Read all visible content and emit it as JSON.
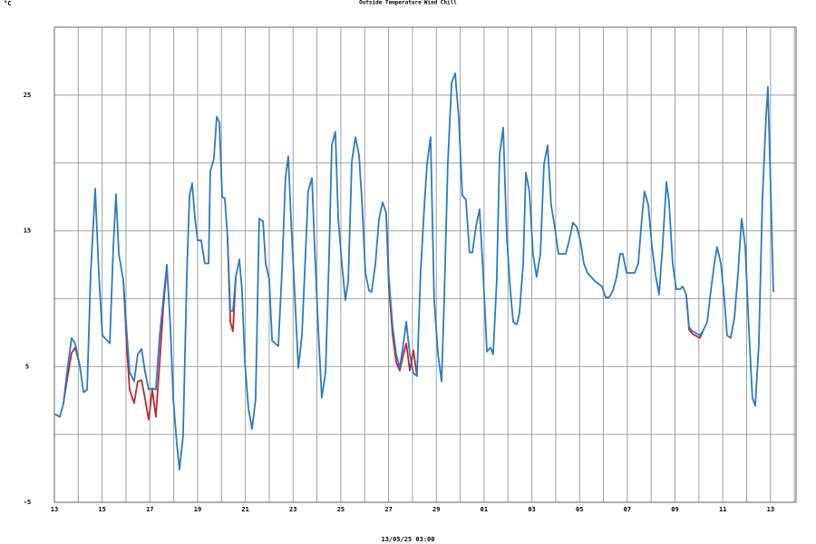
{
  "chart_data": {
    "type": "line",
    "ylabel": "°C",
    "xlabel": "13/05/25 03:00",
    "xlim": [
      0,
      31.07
    ],
    "xticks": [
      {
        "value": 0,
        "label": "13"
      },
      {
        "value": 2,
        "label": "15"
      },
      {
        "value": 4,
        "label": "17"
      },
      {
        "value": 6,
        "label": "19"
      },
      {
        "value": 8,
        "label": "21"
      },
      {
        "value": 10,
        "label": "23"
      },
      {
        "value": 12,
        "label": "25"
      },
      {
        "value": 14,
        "label": "27"
      },
      {
        "value": 16,
        "label": "29"
      },
      {
        "value": 18,
        "label": "01"
      },
      {
        "value": 20,
        "label": "03"
      },
      {
        "value": 22,
        "label": "05"
      },
      {
        "value": 24,
        "label": "07"
      },
      {
        "value": 26,
        "label": "09"
      },
      {
        "value": 28,
        "label": "11"
      },
      {
        "value": 30,
        "label": "13"
      }
    ],
    "x_minor_ticks": [
      1,
      3,
      5,
      7,
      9,
      11,
      13,
      15,
      17,
      19,
      21,
      23,
      25,
      27,
      29,
      31
    ],
    "ylim": [
      -5,
      30
    ],
    "yticks": [
      -5,
      5,
      15,
      25
    ],
    "y_minor_ticks": [
      0,
      10,
      20,
      30
    ],
    "grid": true,
    "series": [
      {
        "name": "Wind Chill",
        "color": "#c0282c",
        "x": [
          0.38,
          0.53,
          0.72,
          0.87,
          1.06,
          null,
          2.89,
          3.04,
          3.15,
          3.34,
          3.49,
          3.65,
          3.8,
          3.95,
          4.1,
          4.25,
          4.41,
          4.56,
          4.71,
          null,
          7.25,
          7.37,
          7.48,
          7.6,
          null,
          13.9,
          14.01,
          14.17,
          14.32,
          14.47,
          14.62,
          14.74,
          14.89,
          15.04,
          15.19,
          null,
          26.47,
          26.59,
          26.74,
          27.04,
          27.19
        ],
        "values": [
          2.3,
          4.0,
          6.0,
          6.4,
          5.1,
          null,
          11.3,
          6.3,
          3.3,
          2.3,
          3.9,
          4.0,
          2.6,
          1.1,
          3.3,
          1.3,
          5.3,
          9.3,
          12.3,
          null,
          14.6,
          8.3,
          7.6,
          11.6,
          null,
          16.3,
          11.0,
          7.3,
          5.3,
          4.7,
          5.9,
          6.7,
          4.7,
          6.2,
          4.3,
          null,
          10.3,
          7.7,
          7.4,
          7.1,
          7.7
        ]
      },
      {
        "name": "Outside Temperature",
        "color": "#2f7bbf",
        "x": [
          0.0,
          0.23,
          0.38,
          0.53,
          0.72,
          0.87,
          1.06,
          1.22,
          1.37,
          1.52,
          1.71,
          1.86,
          2.01,
          2.32,
          2.47,
          2.58,
          2.7,
          2.89,
          3.04,
          3.15,
          3.34,
          3.49,
          3.65,
          3.8,
          3.95,
          4.1,
          4.25,
          4.41,
          4.56,
          4.71,
          4.86,
          4.98,
          5.13,
          5.24,
          5.39,
          5.55,
          5.66,
          5.77,
          5.89,
          6.0,
          6.15,
          6.3,
          6.46,
          6.53,
          6.68,
          6.8,
          6.91,
          7.03,
          7.14,
          7.25,
          7.37,
          7.48,
          7.6,
          7.75,
          7.86,
          7.98,
          8.13,
          8.28,
          8.43,
          8.58,
          8.74,
          8.85,
          9.0,
          9.12,
          9.38,
          9.53,
          9.68,
          9.8,
          9.91,
          10.06,
          10.22,
          10.37,
          10.52,
          10.63,
          10.79,
          10.9,
          11.05,
          11.2,
          11.36,
          11.51,
          11.62,
          11.77,
          11.89,
          12.04,
          12.19,
          12.31,
          12.46,
          12.61,
          12.76,
          12.88,
          13.03,
          13.18,
          13.29,
          13.45,
          13.6,
          13.75,
          13.9,
          14.01,
          14.17,
          14.32,
          14.47,
          14.62,
          14.74,
          14.89,
          15.04,
          15.19,
          15.34,
          15.5,
          15.61,
          15.76,
          15.91,
          16.07,
          16.22,
          16.33,
          16.48,
          16.64,
          16.79,
          16.94,
          17.09,
          17.24,
          17.39,
          17.51,
          17.66,
          17.81,
          17.96,
          18.12,
          18.27,
          18.38,
          18.53,
          18.65,
          18.8,
          18.95,
          19.1,
          19.22,
          19.37,
          19.48,
          19.64,
          19.75,
          19.9,
          20.05,
          20.2,
          20.36,
          20.51,
          20.66,
          20.81,
          20.96,
          21.12,
          21.42,
          21.57,
          21.72,
          21.88,
          22.03,
          22.18,
          22.33,
          22.64,
          22.94,
          23.09,
          23.24,
          23.4,
          23.55,
          23.7,
          23.81,
          23.97,
          24.31,
          24.46,
          24.61,
          24.72,
          24.88,
          25.03,
          25.18,
          25.33,
          25.48,
          25.64,
          25.75,
          25.9,
          26.05,
          26.21,
          26.32,
          26.47,
          26.59,
          26.74,
          27.04,
          27.19,
          27.35,
          27.5,
          27.65,
          27.76,
          27.92,
          28.07,
          28.18,
          28.33,
          28.49,
          28.64,
          28.79,
          28.94,
          29.09,
          29.24,
          29.36,
          29.51,
          29.66,
          29.81,
          29.89,
          30.0,
          30.12
        ],
        "values": [
          1.5,
          1.3,
          2.3,
          4.6,
          7.1,
          6.7,
          5.1,
          3.1,
          3.3,
          11.9,
          18.1,
          11.9,
          7.3,
          6.7,
          13.9,
          17.7,
          13.3,
          11.3,
          7.3,
          4.6,
          3.9,
          5.9,
          6.3,
          4.6,
          3.3,
          3.4,
          3.3,
          7.3,
          9.9,
          12.5,
          7.9,
          2.6,
          -0.7,
          -2.6,
          -0.1,
          11.9,
          17.6,
          18.5,
          15.9,
          14.3,
          14.3,
          12.6,
          12.6,
          19.4,
          20.3,
          23.4,
          23.0,
          17.5,
          17.4,
          14.6,
          9.1,
          9.1,
          11.6,
          12.9,
          10.6,
          5.3,
          1.9,
          0.4,
          2.6,
          15.9,
          15.7,
          12.6,
          11.4,
          6.9,
          6.5,
          11.9,
          18.9,
          20.5,
          15.9,
          10.6,
          4.9,
          7.3,
          13.3,
          17.9,
          18.9,
          13.9,
          7.9,
          2.7,
          4.6,
          13.3,
          21.3,
          22.3,
          15.9,
          12.6,
          9.9,
          11.3,
          20.1,
          21.9,
          20.6,
          17.3,
          11.9,
          10.6,
          10.5,
          12.6,
          15.9,
          17.1,
          16.3,
          11.6,
          7.9,
          5.9,
          4.9,
          6.7,
          8.3,
          5.9,
          4.5,
          4.3,
          11.9,
          16.9,
          19.9,
          21.9,
          9.9,
          5.9,
          3.9,
          9.9,
          19.9,
          25.9,
          26.6,
          23.3,
          17.6,
          17.3,
          13.4,
          13.4,
          15.3,
          16.6,
          11.9,
          6.1,
          6.4,
          5.9,
          11.3,
          20.6,
          22.6,
          14.6,
          10.6,
          8.3,
          8.1,
          8.9,
          12.6,
          19.3,
          17.9,
          13.3,
          11.6,
          13.3,
          19.9,
          21.3,
          16.9,
          15.3,
          13.3,
          13.3,
          14.3,
          15.6,
          15.3,
          14.3,
          12.6,
          11.9,
          11.3,
          10.9,
          10.1,
          10.1,
          10.6,
          11.6,
          13.3,
          13.3,
          11.9,
          11.9,
          12.6,
          15.9,
          17.9,
          16.9,
          13.9,
          11.8,
          10.3,
          13.9,
          18.6,
          17.1,
          12.6,
          10.7,
          10.7,
          10.9,
          10.3,
          7.9,
          7.6,
          7.3,
          7.7,
          8.3,
          10.6,
          12.6,
          13.8,
          12.6,
          9.9,
          7.3,
          7.1,
          8.6,
          11.9,
          15.9,
          13.9,
          7.9,
          2.7,
          2.1,
          6.6,
          17.3,
          23.3,
          25.6,
          18.6,
          10.5
        ]
      }
    ]
  }
}
